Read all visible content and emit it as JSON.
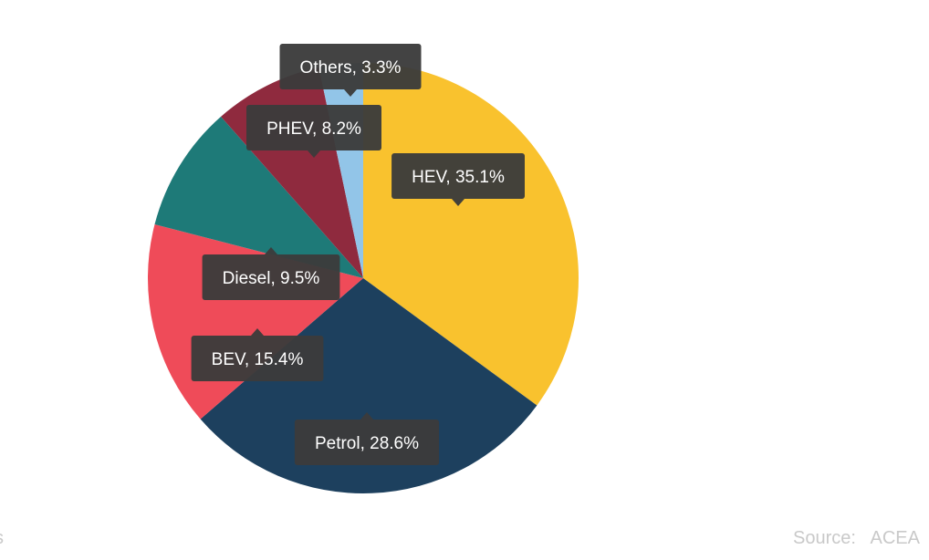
{
  "chart_data": {
    "type": "pie",
    "title": "",
    "slices": [
      {
        "name": "HEV",
        "value": 35.1,
        "color": "#f9c22e",
        "label": "HEV, 35.1%"
      },
      {
        "name": "Petrol",
        "value": 28.6,
        "color": "#1d405e",
        "label": "Petrol, 28.6%"
      },
      {
        "name": "BEV",
        "value": 15.4,
        "color": "#ef4b59",
        "label": "BEV, 15.4%"
      },
      {
        "name": "Diesel",
        "value": 9.5,
        "color": "#1e7a78",
        "label": "Diesel, 9.5%"
      },
      {
        "name": "PHEV",
        "value": 8.2,
        "color": "#8f2a3e",
        "label": "PHEV, 8.2%"
      },
      {
        "name": "Others",
        "value": 3.3,
        "color": "#92c5e8",
        "label": "Others, 3.3%"
      }
    ]
  },
  "footer": {
    "source_text": "Source:   ACEA",
    "left_fragment": "s"
  }
}
